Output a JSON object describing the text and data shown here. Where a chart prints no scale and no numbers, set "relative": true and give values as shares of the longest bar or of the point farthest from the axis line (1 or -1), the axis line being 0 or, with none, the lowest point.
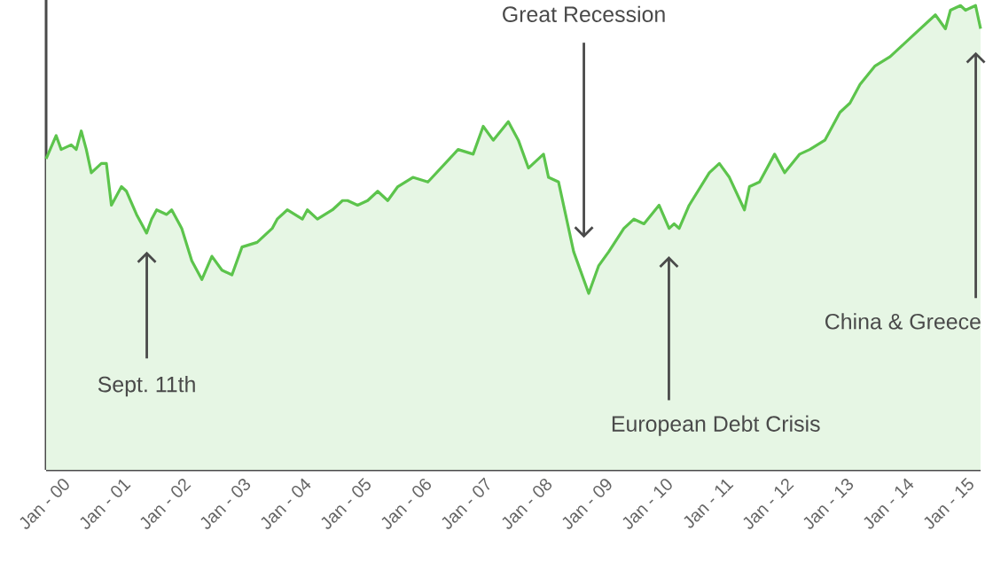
{
  "chart_data": {
    "type": "area",
    "relative": true,
    "color": "#5cc44c",
    "grid": false,
    "xlim": [
      "2000-01",
      "2015-07"
    ],
    "xticks": [
      {
        "value": "2000-01",
        "label": "Jan - 00"
      },
      {
        "value": "2001-01",
        "label": "Jan - 01"
      },
      {
        "value": "2002-01",
        "label": "Jan - 02"
      },
      {
        "value": "2003-01",
        "label": "Jan - 03"
      },
      {
        "value": "2004-01",
        "label": "Jan - 04"
      },
      {
        "value": "2005-01",
        "label": "Jan - 05"
      },
      {
        "value": "2006-01",
        "label": "Jan - 06"
      },
      {
        "value": "2007-01",
        "label": "Jan - 07"
      },
      {
        "value": "2008-01",
        "label": "Jan - 08"
      },
      {
        "value": "2009-01",
        "label": "Jan - 09"
      },
      {
        "value": "2010-01",
        "label": "Jan - 10"
      },
      {
        "value": "2011-01",
        "label": "Jan - 11"
      },
      {
        "value": "2012-01",
        "label": "Jan - 12"
      },
      {
        "value": "2013-01",
        "label": "Jan - 13"
      },
      {
        "value": "2014-01",
        "label": "Jan - 14"
      },
      {
        "value": "2015-01",
        "label": "Jan - 15"
      }
    ],
    "x": [
      "2000-01",
      "2000-03",
      "2000-04",
      "2000-06",
      "2000-07",
      "2000-08",
      "2000-09",
      "2000-10",
      "2000-12",
      "2001-01",
      "2001-02",
      "2001-04",
      "2001-05",
      "2001-07",
      "2001-09",
      "2001-10",
      "2001-11",
      "2002-01",
      "2002-02",
      "2002-04",
      "2002-06",
      "2002-08",
      "2002-10",
      "2002-12",
      "2003-02",
      "2003-04",
      "2003-07",
      "2003-10",
      "2003-11",
      "2004-01",
      "2004-04",
      "2004-05",
      "2004-07",
      "2004-10",
      "2004-12",
      "2005-01",
      "2005-03",
      "2005-05",
      "2005-07",
      "2005-09",
      "2005-11",
      "2006-02",
      "2006-05",
      "2006-11",
      "2007-02",
      "2007-04",
      "2007-06",
      "2007-09",
      "2007-11",
      "2008-01",
      "2008-04",
      "2008-05",
      "2008-07",
      "2008-10",
      "2009-01",
      "2009-03",
      "2009-05",
      "2009-08",
      "2009-10",
      "2009-12",
      "2010-03",
      "2010-05",
      "2010-06",
      "2010-07",
      "2010-09",
      "2011-01",
      "2011-03",
      "2011-05",
      "2011-08",
      "2011-09",
      "2011-11",
      "2012-02",
      "2012-04",
      "2012-07",
      "2012-09",
      "2012-12",
      "2013-03",
      "2013-05",
      "2013-07",
      "2013-10",
      "2014-01",
      "2014-03",
      "2014-05",
      "2014-10",
      "2014-12",
      "2015-01",
      "2015-03",
      "2015-04",
      "2015-06",
      "2015-07"
    ],
    "values": [
      0.67,
      0.72,
      0.69,
      0.7,
      0.69,
      0.73,
      0.69,
      0.64,
      0.66,
      0.66,
      0.57,
      0.61,
      0.6,
      0.55,
      0.51,
      0.54,
      0.56,
      0.55,
      0.56,
      0.52,
      0.45,
      0.41,
      0.46,
      0.43,
      0.42,
      0.48,
      0.49,
      0.52,
      0.54,
      0.56,
      0.54,
      0.56,
      0.54,
      0.56,
      0.58,
      0.58,
      0.57,
      0.58,
      0.6,
      0.58,
      0.61,
      0.63,
      0.62,
      0.69,
      0.68,
      0.74,
      0.71,
      0.75,
      0.71,
      0.65,
      0.68,
      0.63,
      0.62,
      0.47,
      0.38,
      0.44,
      0.47,
      0.52,
      0.54,
      0.53,
      0.57,
      0.52,
      0.53,
      0.52,
      0.57,
      0.64,
      0.66,
      0.63,
      0.56,
      0.61,
      0.62,
      0.68,
      0.64,
      0.68,
      0.69,
      0.71,
      0.77,
      0.79,
      0.83,
      0.87,
      0.89,
      0.91,
      0.93,
      0.98,
      0.95,
      0.99,
      1.0,
      0.99,
      1.0,
      0.95
    ],
    "annotations": [
      "Sept. 11th",
      "Great Recession",
      "European Debt Crisis",
      "China & Greece"
    ]
  }
}
